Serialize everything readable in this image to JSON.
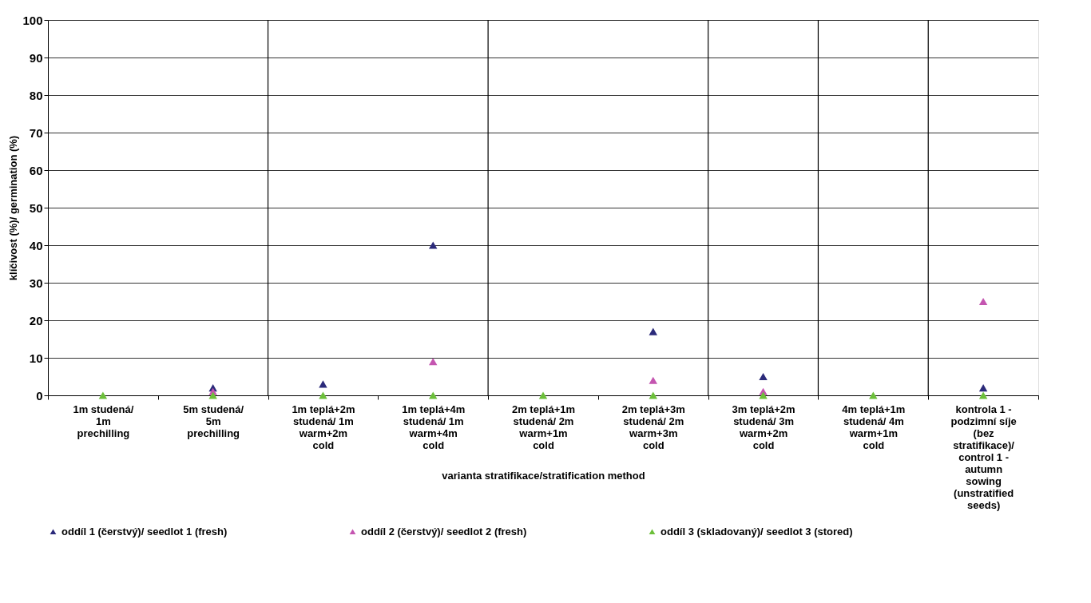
{
  "chart_data": {
    "type": "scatter",
    "xlabel": "varianta stratifikace/stratification method",
    "ylabel": "klíčivost (%)/ germination (%)",
    "categories": [
      "1m studená/\n1m\nprechilling",
      "5m studená/\n5m\nprechilling",
      "1m teplá+2m\nstudená/ 1m\nwarm+2m\ncold",
      "1m teplá+4m\nstudená/ 1m\nwarm+4m\ncold",
      "2m teplá+1m\nstudená/ 2m\nwarm+1m\ncold",
      "2m teplá+3m\nstudená/ 2m\nwarm+3m\ncold",
      "3m teplá+2m\nstudená/ 3m\nwarm+2m\ncold",
      "4m teplá+1m\nstudená/ 4m\nwarm+1m\ncold",
      "kontrola 1 -\npodzimní síje\n(bez\nstratifikace)/\ncontrol 1 -\nautumn\nsowing\n(unstratified\nseeds)"
    ],
    "series": [
      {
        "name": "oddíl 1 (čerstvý)/ seedlot 1 (fresh)",
        "color": "#2b2a7a",
        "values": [
          null,
          2,
          3,
          40,
          null,
          17,
          5,
          null,
          2
        ]
      },
      {
        "name": "oddíl 2 (čerstvý)/ seedlot 2 (fresh)",
        "color": "#c455b0",
        "values": [
          null,
          1,
          null,
          9,
          null,
          4,
          1,
          null,
          25
        ]
      },
      {
        "name": "oddíl 3 (skladovaný)/ seedlot 3 (stored)",
        "color": "#6cbf3a",
        "values": [
          0,
          0,
          0,
          0,
          0,
          0,
          0,
          0,
          0
        ]
      }
    ],
    "ylim": [
      0,
      100
    ],
    "yticks": [
      0,
      10,
      20,
      30,
      40,
      50,
      60,
      70,
      80,
      90,
      100
    ],
    "grid": "y",
    "legend": "bottom",
    "marker": "triangle"
  }
}
